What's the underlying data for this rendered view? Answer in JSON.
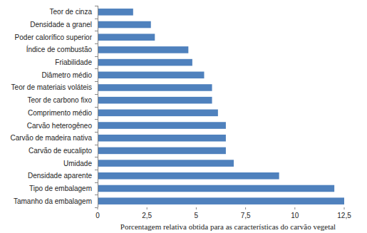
{
  "chart_data": {
    "type": "bar",
    "orientation": "horizontal",
    "x_label": "Porcentagem relativa obtida para as características do carvão vegetal",
    "categories": [
      "Teor de cinza",
      "Densidade a granel",
      "Poder calorífico superior",
      "Índice de combustão",
      "Friabilidade",
      "Diâmetro médio",
      "Teor de materiais voláteis",
      "Teor de carbono fixo",
      "Comprimento médio",
      "Carvão heterogêneo",
      "Carvão de madeira nativa",
      "Carvão de eucalipto",
      "Umidade",
      "Densidade aparente",
      "Tipo de embalagem",
      "Tamanho da embalagem"
    ],
    "values": [
      1.8,
      2.7,
      2.9,
      4.6,
      4.8,
      5.4,
      5.8,
      5.8,
      6.1,
      6.5,
      6.5,
      6.5,
      6.9,
      9.2,
      12.0,
      12.5
    ],
    "color": "#4f81bd",
    "xlim": [
      0,
      12.5
    ],
    "xticks": [
      0,
      {
        "value": 2.5,
        "label": "2,5"
      },
      5,
      {
        "value": 7.5,
        "label": "7,5"
      },
      10,
      {
        "value": 12.5,
        "label": "12,5"
      }
    ],
    "grid": false
  }
}
